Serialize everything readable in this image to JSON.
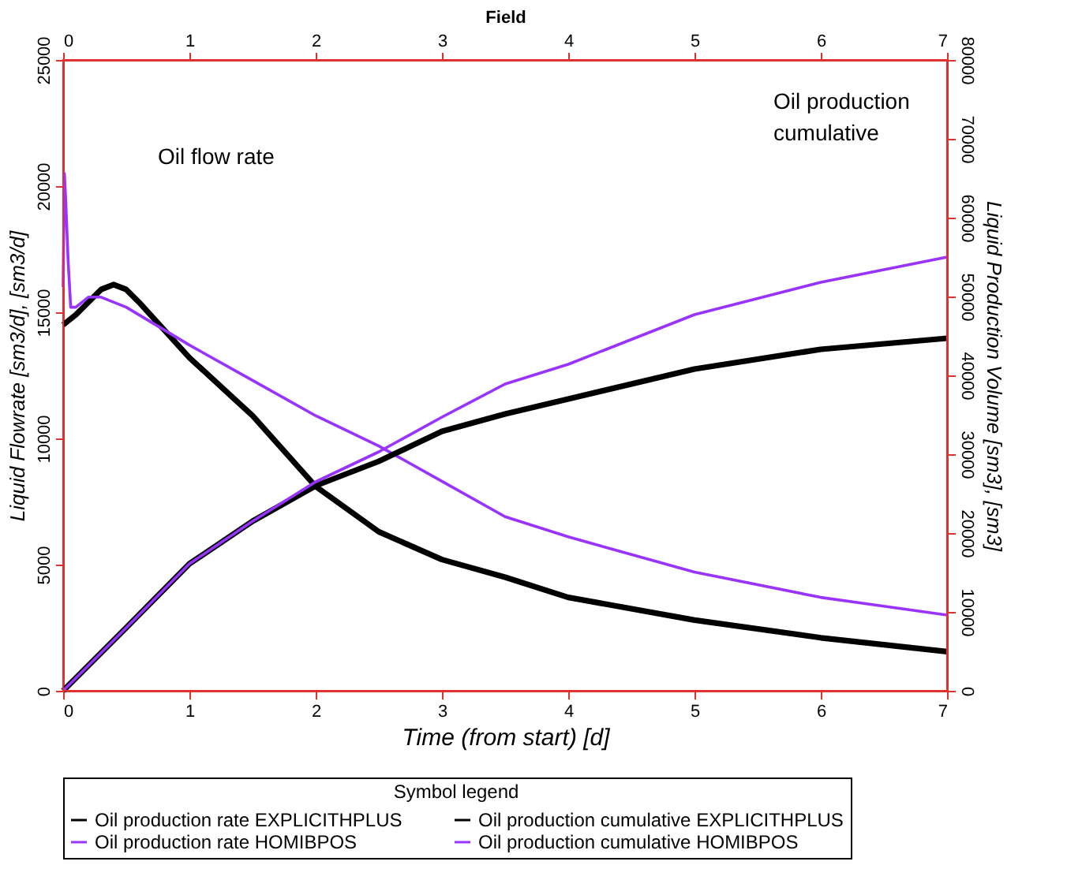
{
  "chart_data": {
    "type": "line",
    "xlabel": "Time (from start) [d]",
    "x2label": "Field",
    "ylabel": "Liquid Flowrate [sm3/d], [sm3/d]",
    "y2label": "Liquid Production Volume [sm3], [sm3]",
    "legend_title": "Symbol legend",
    "legend": "bottom",
    "grid": false,
    "marker": "none",
    "line_style": "solid",
    "xlim": [
      0,
      7
    ],
    "xticks": [
      0,
      1,
      2,
      3,
      4,
      5,
      6,
      7
    ],
    "x2lim": [
      0,
      7
    ],
    "x2ticks": [
      0,
      1,
      2,
      3,
      4,
      5,
      6,
      7
    ],
    "ylim": [
      0,
      25000
    ],
    "yticks": [
      0,
      5000,
      10000,
      15000,
      20000,
      25000
    ],
    "y2lim": [
      0,
      80000
    ],
    "y2ticks": [
      0,
      10000,
      20000,
      30000,
      40000,
      50000,
      60000,
      70000,
      80000
    ],
    "annotations": [
      "Oil flow rate",
      "Oil production cumulative"
    ],
    "series": [
      {
        "name": "Oil production rate EXPLICITHPLUS",
        "color": "#000000",
        "axis": "y",
        "x": [
          0,
          0.1,
          0.2,
          0.3,
          0.4,
          0.5,
          0.6,
          0.8,
          1,
          1.5,
          2,
          2.5,
          3,
          3.5,
          4,
          5,
          6,
          7
        ],
        "values": [
          14500,
          14900,
          15400,
          15900,
          16100,
          15900,
          15400,
          14300,
          13200,
          10900,
          8100,
          6300,
          5200,
          4500,
          3700,
          2800,
          2100,
          1550
        ]
      },
      {
        "name": "Oil production cumulative EXPLICITHPLUS",
        "color": "#000000",
        "axis": "y2",
        "x": [
          0,
          0.5,
          1,
          1.5,
          2,
          2.5,
          3,
          3.5,
          4,
          5,
          6,
          7
        ],
        "values": [
          0,
          8000,
          16100,
          21500,
          26000,
          29100,
          32900,
          35100,
          37000,
          40800,
          43300,
          44700
        ]
      },
      {
        "name": "Oil production rate HOMIBPOS",
        "color": "#9933ff",
        "axis": "y",
        "x": [
          0,
          0.01,
          0.02,
          0.04,
          0.06,
          0.1,
          0.2,
          0.3,
          0.5,
          0.8,
          1,
          1.5,
          2,
          2.5,
          3,
          3.5,
          4,
          5,
          6,
          7
        ],
        "values": [
          16000,
          20500,
          19500,
          17000,
          15200,
          15200,
          15600,
          15600,
          15200,
          14300,
          13700,
          12300,
          10900,
          9700,
          8300,
          6900,
          6100,
          4700,
          3700,
          3000
        ]
      },
      {
        "name": "Oil production cumulative HOMIBPOS",
        "color": "#9933ff",
        "axis": "y2",
        "x": [
          0,
          0.5,
          1,
          1.5,
          2,
          2.5,
          3,
          3.5,
          4,
          5,
          6,
          7
        ],
        "values": [
          0,
          8000,
          16100,
          21500,
          26500,
          30300,
          34700,
          38900,
          41400,
          47700,
          51800,
          55000
        ]
      }
    ]
  }
}
